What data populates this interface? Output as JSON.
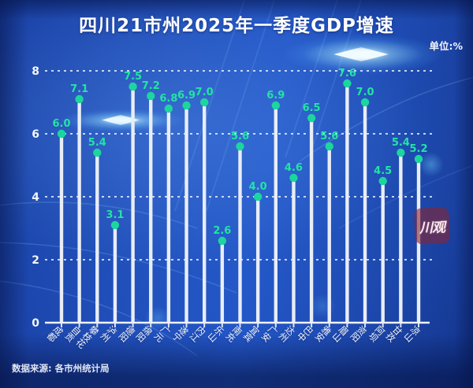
{
  "header": {
    "title": "四川21市州2025年一季度GDP增速",
    "unit_label": "单位:%"
  },
  "footer": {
    "source": "数据来源: 各市州统计局"
  },
  "watermark": {
    "label": "川观"
  },
  "colors": {
    "accent_green": "#24e3a4",
    "dot_green": "#1bd69d",
    "stem_white": "#e8edf7",
    "grid_white": "#f2f6ff",
    "bg_blue": "#1c45ae",
    "watermark_red": "#882432"
  },
  "chart_data": {
    "type": "bar",
    "variant": "lollipop",
    "title": "四川21市州2025年一季度GDP增速",
    "unit": "%",
    "xlabel": "",
    "ylabel": "",
    "ylim": [
      0,
      8
    ],
    "yticks": [
      0,
      2,
      4,
      6,
      8
    ],
    "gridlines": "horizontal-dashed",
    "legend": "none",
    "categories": [
      "成都",
      "自贡",
      "攀枝花",
      "泸州",
      "德阳",
      "绵阳",
      "广元",
      "遂宁",
      "内江",
      "乐山",
      "南充",
      "宜宾",
      "广安",
      "达州",
      "巴中",
      "雅安",
      "眉山",
      "资阳",
      "阿坝",
      "甘孜",
      "凉山"
    ],
    "values": [
      6.0,
      7.1,
      5.4,
      3.1,
      7.5,
      7.2,
      6.8,
      6.9,
      7.0,
      2.6,
      5.6,
      4.0,
      6.9,
      4.6,
      6.5,
      5.6,
      7.6,
      7.0,
      4.5,
      5.4,
      5.2
    ]
  }
}
